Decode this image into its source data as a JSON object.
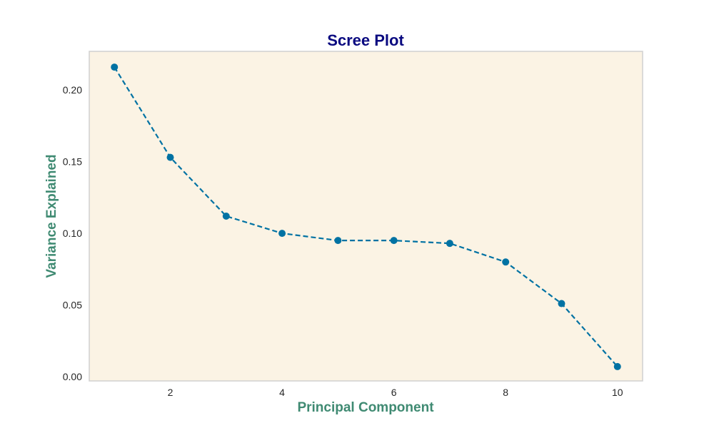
{
  "chart_data": {
    "type": "line",
    "title": "Scree Plot",
    "xlabel": "Principal Component",
    "ylabel": "Variance Explained",
    "x": [
      1,
      2,
      3,
      4,
      5,
      6,
      7,
      8,
      9,
      10
    ],
    "series": [
      {
        "values": [
          0.216,
          0.153,
          0.112,
          0.1,
          0.095,
          0.095,
          0.093,
          0.08,
          0.051,
          0.007
        ]
      }
    ],
    "xlim": [
      0.55,
      10.45
    ],
    "ylim": [
      -0.003,
      0.227
    ],
    "xticks": [
      2,
      4,
      6,
      8,
      10
    ],
    "xtick_labels": [
      "2",
      "4",
      "6",
      "8",
      "10"
    ],
    "yticks": [
      0.0,
      0.05,
      0.1,
      0.15,
      0.2
    ],
    "ytick_labels": [
      "0.00",
      "0.05",
      "0.10",
      "0.15",
      "0.20"
    ],
    "grid": false,
    "line_style": "dashed",
    "marker": "circle",
    "colors": {
      "series": "#0072a3",
      "plot_background": "#fbf3e4",
      "plot_border": "#d0d0d0",
      "title": "#0a0a80",
      "axis_label": "#3f8a72"
    }
  }
}
